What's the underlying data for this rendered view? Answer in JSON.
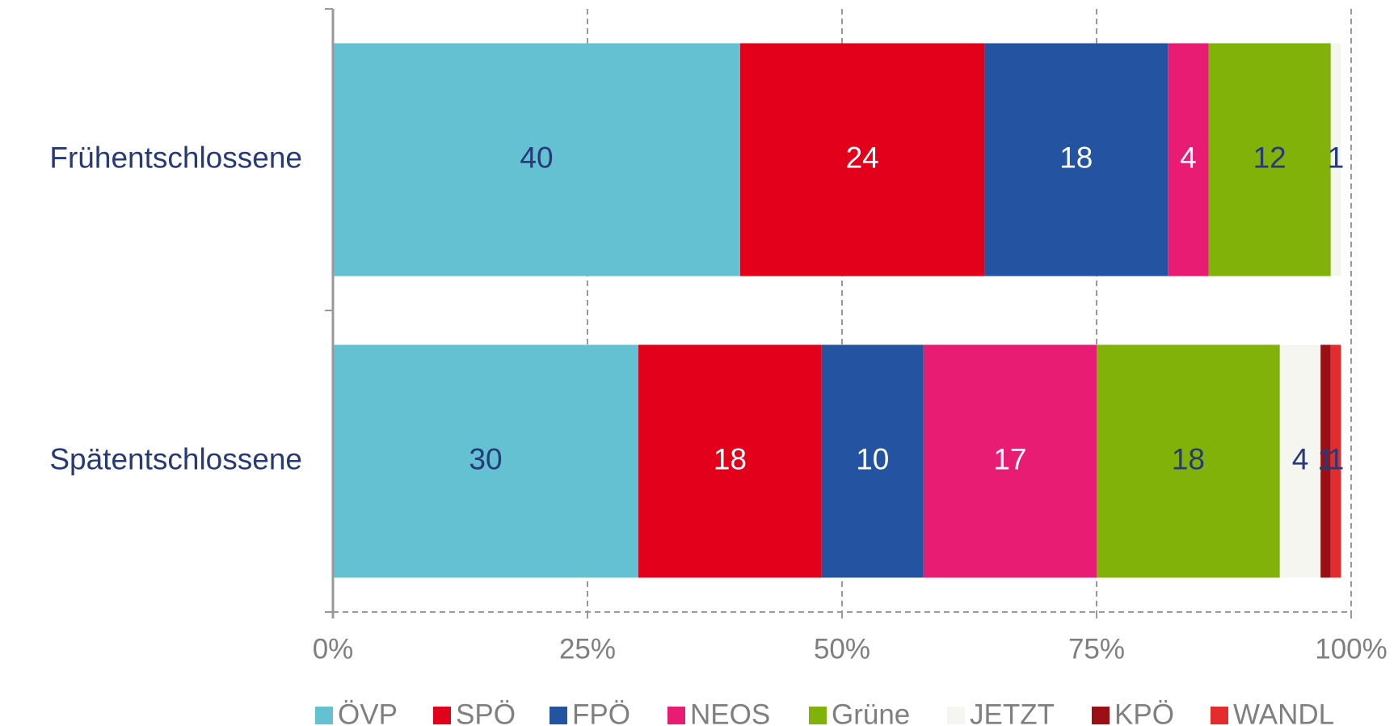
{
  "chart_data": {
    "type": "stacked_barh",
    "categories": [
      "Frühentschlossene",
      "Spätentschlossene"
    ],
    "series": [
      {
        "name": "ÖVP",
        "color": "#63c1d1",
        "label_color": "#263a7a",
        "values": [
          40,
          30
        ]
      },
      {
        "name": "SPÖ",
        "color": "#e2001a",
        "label_color": "#ffffff",
        "values": [
          24,
          18
        ]
      },
      {
        "name": "FPÖ",
        "color": "#2353a1",
        "label_color": "#ffffff",
        "values": [
          18,
          10
        ]
      },
      {
        "name": "NEOS",
        "color": "#e81c73",
        "label_color": "#ffffff",
        "values": [
          4,
          17
        ]
      },
      {
        "name": "Grüne",
        "color": "#80b20a",
        "label_color": "#263a7a",
        "values": [
          12,
          18
        ]
      },
      {
        "name": "JETZT",
        "color": "#f6f6f0",
        "label_color": "#263a7a",
        "values": [
          1,
          4
        ]
      },
      {
        "name": "KPÖ",
        "color": "#9b1015",
        "label_color": "#263a7a",
        "values": [
          null,
          1
        ]
      },
      {
        "name": "WANDL",
        "color": "#e52c2c",
        "label_color": "#263a7a",
        "values": [
          null,
          1
        ]
      }
    ],
    "xlim": [
      0,
      100
    ],
    "xticks": [
      {
        "value": 0,
        "label": "0%"
      },
      {
        "value": 25,
        "label": "25%"
      },
      {
        "value": 50,
        "label": "50%"
      },
      {
        "value": 75,
        "label": "75%"
      },
      {
        "value": 100,
        "label": "100%"
      }
    ],
    "grid": true
  }
}
